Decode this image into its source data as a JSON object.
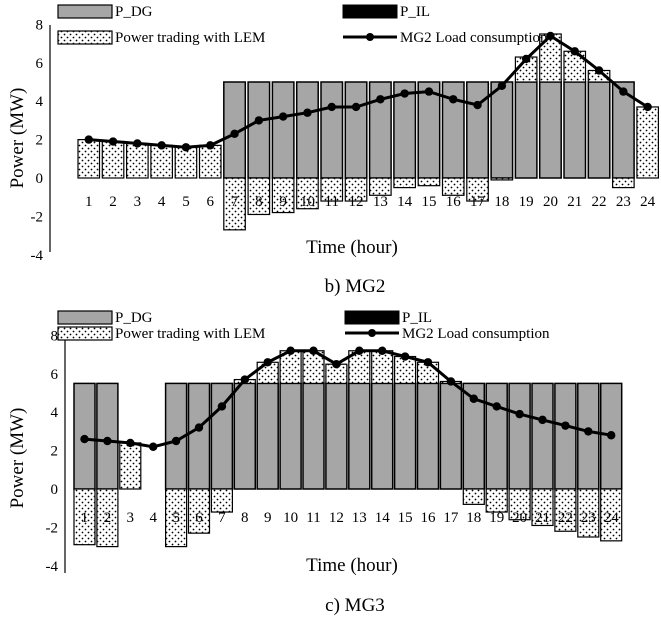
{
  "colors": {
    "dg": "#a6a6a6",
    "il": "#000000",
    "lem_dots": "#000000",
    "background": "#ffffff"
  },
  "chart_data": [
    {
      "type": "bar",
      "caption": "b)    MG2",
      "xlabel": "Time (hour)",
      "ylabel": "Power (MW)",
      "ylim": [
        -4,
        8
      ],
      "yticks": [
        -4,
        -2,
        0,
        2,
        4,
        6,
        8
      ],
      "categories": [
        "1",
        "2",
        "3",
        "4",
        "5",
        "6",
        "7",
        "8",
        "9",
        "10",
        "11",
        "12",
        "13",
        "14",
        "15",
        "16",
        "17",
        "18",
        "19",
        "20",
        "21",
        "22",
        "23",
        "24"
      ],
      "legend": [
        "P_DG",
        "P_IL",
        "Power trading with LEM",
        "MG2 Load consumption"
      ],
      "grid": false,
      "series": [
        {
          "name": "P_DG",
          "values": [
            0,
            0,
            0,
            0,
            0,
            0,
            5,
            5,
            5,
            5,
            5,
            5,
            5,
            5,
            5,
            5,
            5,
            5,
            5,
            5,
            5,
            5,
            5,
            0
          ]
        },
        {
          "name": "P_IL",
          "values": [
            0,
            0,
            0,
            0,
            0,
            0,
            0,
            0,
            0,
            0,
            0,
            0,
            0,
            0,
            0,
            0,
            0,
            0,
            0,
            0,
            0,
            0,
            0,
            0
          ]
        },
        {
          "name": "Power trading with LEM",
          "values": [
            2.0,
            1.9,
            1.8,
            1.7,
            1.6,
            1.7,
            -2.7,
            -1.9,
            -1.8,
            -1.6,
            -1.2,
            -1.2,
            -0.9,
            -0.5,
            -0.4,
            -0.9,
            -1.2,
            -0.1,
            1.3,
            2.5,
            1.6,
            0.6,
            -0.5,
            3.7
          ]
        },
        {
          "name": "MG2 Load consumption",
          "values": [
            2.0,
            1.9,
            1.8,
            1.7,
            1.6,
            1.7,
            2.3,
            3.0,
            3.2,
            3.4,
            3.7,
            3.7,
            4.1,
            4.4,
            4.5,
            4.1,
            3.8,
            4.8,
            6.2,
            7.4,
            6.6,
            5.6,
            4.5,
            3.7
          ]
        }
      ]
    },
    {
      "type": "bar",
      "caption": "c)    MG3",
      "xlabel": "Time (hour)",
      "ylabel": "Power (MW)",
      "ylim": [
        -4,
        8
      ],
      "yticks": [
        -4,
        -2,
        0,
        2,
        4,
        6,
        8
      ],
      "categories": [
        "1",
        "2",
        "3",
        "4",
        "5",
        "6",
        "7",
        "8",
        "9",
        "10",
        "11",
        "12",
        "13",
        "14",
        "15",
        "16",
        "17",
        "18",
        "19",
        "20",
        "21",
        "22",
        "23",
        "24"
      ],
      "legend": [
        "P_DG",
        "P_IL",
        "Power trading with LEM",
        "MG2 Load consumption"
      ],
      "grid": false,
      "series": [
        {
          "name": "P_DG",
          "values": [
            5.5,
            5.5,
            0,
            0,
            5.5,
            5.5,
            5.5,
            5.5,
            5.5,
            5.5,
            5.5,
            5.5,
            5.5,
            5.5,
            5.5,
            5.5,
            5.5,
            5.5,
            5.5,
            5.5,
            5.5,
            5.5,
            5.5,
            5.5
          ]
        },
        {
          "name": "P_IL",
          "values": [
            0,
            0,
            0,
            0,
            0,
            0,
            0,
            0,
            0,
            0,
            0,
            0,
            0,
            0,
            0,
            0,
            0,
            0,
            0,
            0,
            0,
            0,
            0,
            0
          ]
        },
        {
          "name": "Power trading with LEM",
          "values": [
            -2.9,
            -3.0,
            2.4,
            0,
            -3.0,
            -2.3,
            -1.2,
            0.2,
            1.1,
            1.7,
            1.7,
            1.0,
            1.7,
            1.7,
            1.4,
            1.1,
            0.1,
            -0.8,
            -1.2,
            -1.6,
            -1.9,
            -2.2,
            -2.5,
            -2.7
          ]
        },
        {
          "name": "MG2 Load consumption",
          "values": [
            2.6,
            2.5,
            2.4,
            2.2,
            2.5,
            3.2,
            4.3,
            5.7,
            6.6,
            7.2,
            7.2,
            6.5,
            7.2,
            7.2,
            6.9,
            6.6,
            5.6,
            4.7,
            4.3,
            3.9,
            3.6,
            3.3,
            3.0,
            2.8
          ]
        }
      ]
    }
  ]
}
